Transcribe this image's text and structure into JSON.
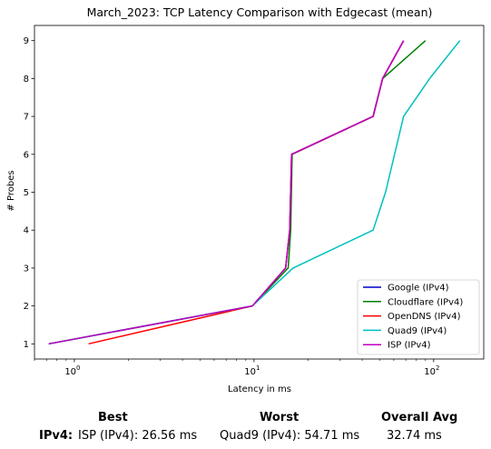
{
  "chart_data": {
    "type": "line",
    "title": "March_2023: TCP Latency Comparison with Edgecast (mean)",
    "xlabel": "Latency in ms",
    "ylabel": "# Probes",
    "xscale": "log",
    "xlim": [
      0.6,
      190
    ],
    "ylim": [
      0.6,
      9.4
    ],
    "xticks": [
      {
        "value": 1,
        "base": "10",
        "exp": "0"
      },
      {
        "value": 10,
        "base": "10",
        "exp": "1"
      },
      {
        "value": 100,
        "base": "10",
        "exp": "2"
      }
    ],
    "yticks": [
      1,
      2,
      3,
      4,
      5,
      6,
      7,
      8,
      9
    ],
    "grid": false,
    "legend_position": "lower-right",
    "series": [
      {
        "name": "Google (IPv4)",
        "color": "#0000cc",
        "x": [
          0.72,
          9.8,
          15,
          15.8,
          16.2,
          46,
          52,
          68
        ],
        "y": [
          1,
          2,
          3,
          4,
          6,
          7,
          8,
          9
        ]
      },
      {
        "name": "Cloudflare (IPv4)",
        "color": "#008000",
        "x": [
          0.72,
          9.8,
          15.5,
          16.0,
          16.3,
          46,
          52,
          90
        ],
        "y": [
          1,
          2,
          3,
          4,
          6,
          7,
          8,
          9
        ]
      },
      {
        "name": "OpenDNS (IPv4)",
        "color": "#ff0000",
        "x": [
          1.2,
          9.8,
          15,
          15.8,
          16.2,
          46,
          52,
          68
        ],
        "y": [
          1,
          2,
          3,
          4,
          6,
          7,
          8,
          9
        ]
      },
      {
        "name": "Quad9 (IPv4)",
        "color": "#00bfbf",
        "x": [
          0.72,
          9.8,
          16.5,
          46,
          54,
          68,
          95,
          140
        ],
        "y": [
          1,
          2,
          3,
          4,
          5,
          7,
          8,
          9
        ]
      },
      {
        "name": "ISP (IPv4)",
        "color": "#bf00bf",
        "x": [
          0.72,
          9.8,
          15,
          15.8,
          16.2,
          46,
          52,
          68
        ],
        "y": [
          1,
          2,
          3,
          4,
          6,
          7,
          8,
          9
        ]
      }
    ]
  },
  "summary": {
    "headers": {
      "best": "Best",
      "worst": "Worst",
      "avg": "Overall Avg"
    },
    "row_label": "IPv4",
    "separator": ":",
    "best": "ISP (IPv4): 26.56 ms",
    "worst": "Quad9 (IPv4): 54.71 ms",
    "avg": "32.74 ms"
  }
}
